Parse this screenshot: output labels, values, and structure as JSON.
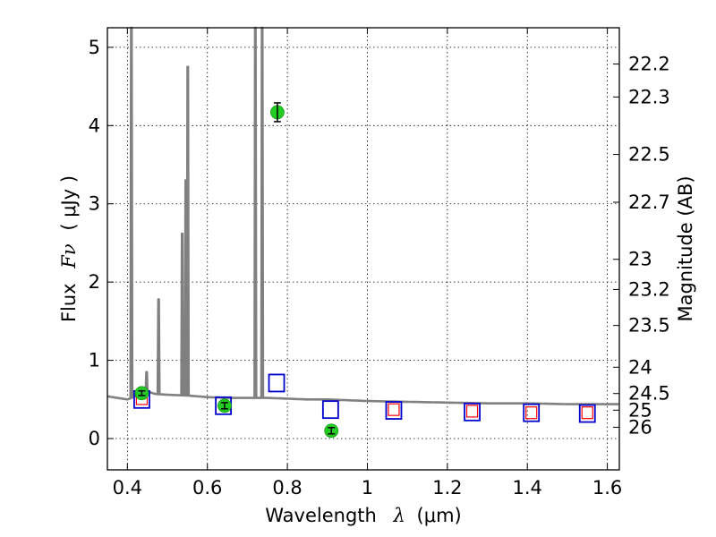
{
  "chart_data": {
    "type": "scatter",
    "xlabel_prefix": "Wavelength",
    "xlabel_symbol": "λ",
    "xlabel_unit": "(μm)",
    "ylabel_prefix": "Flux",
    "ylabel_symbol": "Fν",
    "ylabel_unit": "( μJy )",
    "y2label": "Magnitude (AB)",
    "xlim": [
      0.35,
      1.63
    ],
    "ylim": [
      -0.4,
      5.25
    ],
    "x_ticks": [
      0.4,
      0.6,
      0.8,
      1.0,
      1.2,
      1.4,
      1.6
    ],
    "x_tick_labels": [
      "0.4",
      "0.6",
      "0.8",
      "1",
      "1.2",
      "1.4",
      "1.6"
    ],
    "y_ticks": [
      0,
      1,
      2,
      3,
      4,
      5
    ],
    "y_tick_labels": [
      "0",
      "1",
      "2",
      "3",
      "4",
      "5"
    ],
    "mag_ticks": [
      22.2,
      22.3,
      22.5,
      22.7,
      23,
      23.2,
      23.5,
      24,
      24.5,
      25,
      26
    ],
    "mag_tick_labels": [
      "22.2",
      "22.3",
      "22.5",
      "22.7",
      "23",
      "23.2",
      "23.5",
      "24",
      "24.5",
      "25",
      "26"
    ],
    "grid": true,
    "colors": {
      "spectrum": "#808080",
      "observed": "#22cc22",
      "model_blue": "#0000cc",
      "model_red": "#ff0000",
      "errorbar": "#000000"
    },
    "spectrum": {
      "name": "model spectrum",
      "continuum": [
        [
          0.35,
          0.54
        ],
        [
          0.4,
          0.5
        ],
        [
          0.45,
          0.6
        ],
        [
          0.47,
          0.57
        ],
        [
          0.5,
          0.56
        ],
        [
          0.55,
          0.55
        ],
        [
          0.6,
          0.53
        ],
        [
          0.65,
          0.52
        ],
        [
          0.7,
          0.52
        ],
        [
          0.75,
          0.52
        ],
        [
          0.8,
          0.51
        ],
        [
          0.85,
          0.5
        ],
        [
          0.9,
          0.5
        ],
        [
          1.0,
          0.48
        ],
        [
          1.1,
          0.47
        ],
        [
          1.2,
          0.46
        ],
        [
          1.3,
          0.45
        ],
        [
          1.4,
          0.45
        ],
        [
          1.5,
          0.44
        ],
        [
          1.63,
          0.44
        ]
      ],
      "emission_lines": [
        {
          "x": 0.41,
          "peak": 5.25
        },
        {
          "x": 0.448,
          "peak": 0.85
        },
        {
          "x": 0.478,
          "peak": 1.78
        },
        {
          "x": 0.537,
          "peak": 2.62
        },
        {
          "x": 0.546,
          "peak": 3.3
        },
        {
          "x": 0.551,
          "peak": 4.75
        },
        {
          "x": 0.72,
          "peak": 5.25
        },
        {
          "x": 0.737,
          "peak": 5.25
        }
      ]
    },
    "observed": [
      {
        "x": 0.436,
        "y": 0.58,
        "err": 0.03
      },
      {
        "x": 0.643,
        "y": 0.42,
        "err": 0.04
      },
      {
        "x": 0.775,
        "y": 4.17,
        "err": 0.12
      },
      {
        "x": 0.91,
        "y": 0.1,
        "err": 0.04
      }
    ],
    "model_blue": [
      {
        "x": 0.436,
        "y": 0.5
      },
      {
        "x": 0.64,
        "y": 0.42
      },
      {
        "x": 0.773,
        "y": 0.71
      },
      {
        "x": 0.908,
        "y": 0.37
      },
      {
        "x": 1.066,
        "y": 0.36
      },
      {
        "x": 1.262,
        "y": 0.34
      },
      {
        "x": 1.41,
        "y": 0.33
      },
      {
        "x": 1.55,
        "y": 0.32
      }
    ],
    "model_red": [
      {
        "x": 0.436,
        "y": 0.51
      },
      {
        "x": 1.066,
        "y": 0.37
      },
      {
        "x": 1.262,
        "y": 0.35
      },
      {
        "x": 1.41,
        "y": 0.33
      },
      {
        "x": 1.55,
        "y": 0.33
      }
    ]
  }
}
